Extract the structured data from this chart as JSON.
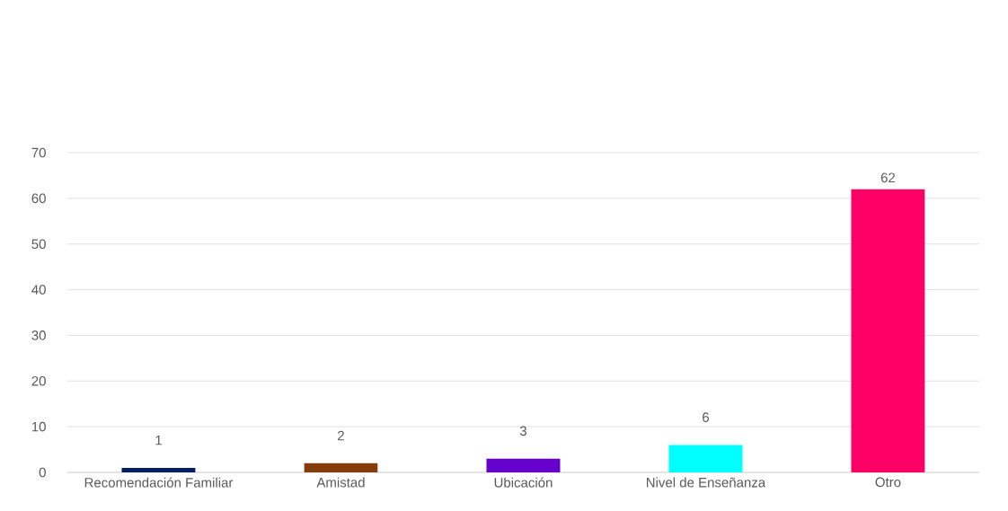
{
  "chart_data": {
    "type": "bar",
    "categories": [
      "Recomendación Familiar",
      "Amistad",
      "Ubicación",
      "Nivel de Enseñanza",
      "Otro"
    ],
    "values": [
      1,
      2,
      3,
      6,
      62
    ],
    "colors": [
      "#002060",
      "#843c0c",
      "#6600cc",
      "#00ffff",
      "#ff0066"
    ],
    "ylim": [
      0,
      70
    ],
    "yticks": [
      0,
      10,
      20,
      30,
      40,
      50,
      60,
      70
    ],
    "grid": "y",
    "data_labels": true
  }
}
